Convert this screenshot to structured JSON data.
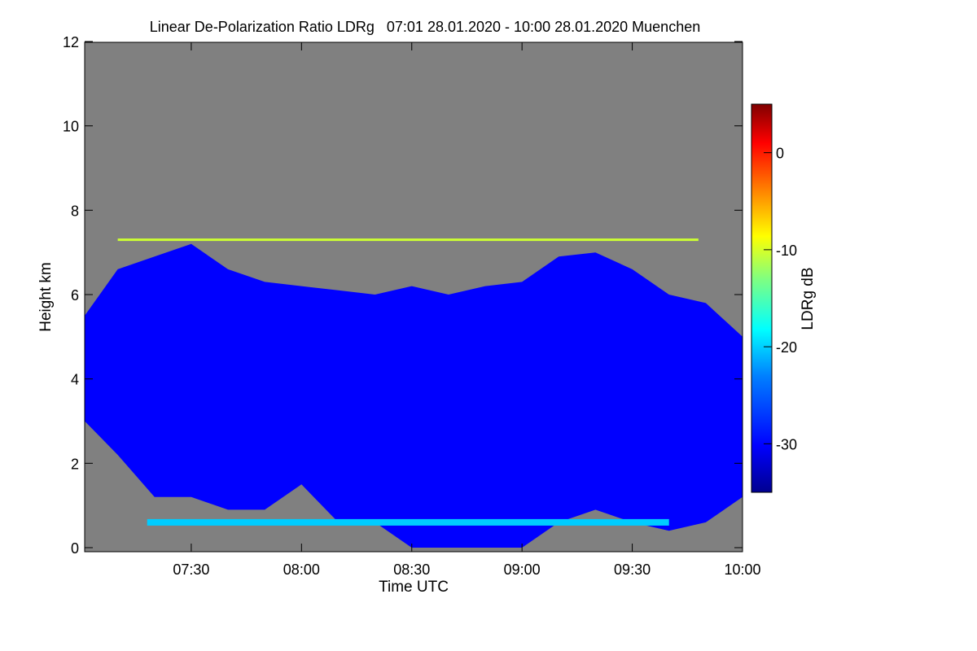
{
  "chart_data": {
    "type": "heatmap",
    "title": "Linear De-Polarization Ratio LDRg   07:01 28.01.2020 - 10:00 28.01.2020 Muenchen",
    "xlabel": "Time UTC",
    "ylabel": "Height km",
    "x_range": [
      "07:01",
      "10:00"
    ],
    "x_ticks": [
      "07:30",
      "08:00",
      "08:30",
      "09:00",
      "09:30",
      "10:00"
    ],
    "y_range": [
      0,
      12
    ],
    "y_ticks": [
      "0",
      "2",
      "4",
      "6",
      "8",
      "10",
      "12"
    ],
    "colorbar": {
      "label": "LDRg dB",
      "range": [
        -35,
        5
      ],
      "ticks": [
        "0",
        "-10",
        "-20",
        "-30"
      ],
      "colormap": [
        "#00008f",
        "#0000ff",
        "#0080ff",
        "#00ffff",
        "#80ff80",
        "#ffff00",
        "#ff8000",
        "#ff0000",
        "#800000"
      ]
    },
    "no_data_color": "#808080",
    "features": {
      "cloud_top_km_profile": {
        "times": [
          "07:01",
          "07:10",
          "07:20",
          "07:30",
          "07:40",
          "07:50",
          "08:00",
          "08:10",
          "08:20",
          "08:30",
          "08:40",
          "08:50",
          "09:00",
          "09:10",
          "09:20",
          "09:30",
          "09:40",
          "09:50",
          "10:00"
        ],
        "top_km": [
          5.5,
          6.6,
          6.9,
          7.2,
          6.6,
          6.3,
          6.2,
          6.1,
          6.0,
          6.2,
          6.0,
          6.2,
          6.3,
          6.9,
          7.0,
          6.6,
          6.0,
          5.8,
          5.0
        ],
        "base_km": [
          3.0,
          2.2,
          1.2,
          1.2,
          0.9,
          0.9,
          1.5,
          0.6,
          0.6,
          0.0,
          0.0,
          0.0,
          0.0,
          0.6,
          0.9,
          0.6,
          0.4,
          0.6,
          1.2
        ]
      },
      "melting_layer_km": 0.6,
      "melting_layer_ldr_db": -22,
      "aerosol_layer_km": 7.3
    }
  }
}
